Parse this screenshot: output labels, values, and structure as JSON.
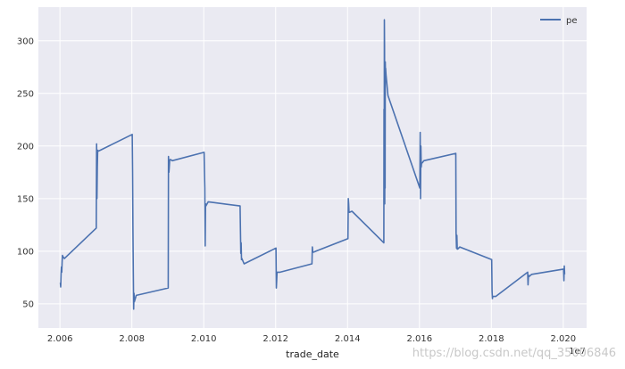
{
  "chart_data": {
    "type": "line",
    "title": "",
    "xlabel": "trade_date",
    "ylabel": "",
    "x_offset_label": "1e7",
    "xlim": [
      20054000,
      20206500
    ],
    "ylim": [
      27,
      332
    ],
    "x_ticks": [
      20060000,
      20080000,
      20100000,
      20120000,
      20140000,
      20160000,
      20180000,
      20200000
    ],
    "x_tick_labels": [
      "2.006",
      "2.008",
      "2.010",
      "2.012",
      "2.014",
      "2.016",
      "2.018",
      "2.020"
    ],
    "y_ticks": [
      50,
      100,
      150,
      200,
      250,
      300
    ],
    "y_tick_labels": [
      "50",
      "100",
      "150",
      "200",
      "250",
      "300"
    ],
    "grid": true,
    "legend_position": "top-right",
    "style": {
      "background": "#eaeaf2",
      "grid_color": "#ffffff",
      "line_color": "#4c72b0"
    },
    "series": [
      {
        "name": "pe",
        "x": [
          20060104,
          20060200,
          20060300,
          20060400,
          20060500,
          20060600,
          20060700,
          20060800,
          20061229,
          20070104,
          20070200,
          20070300,
          20070400,
          20070500,
          20070600,
          20071228,
          20080104,
          20080200,
          20080300,
          20080400,
          20080500,
          20080600,
          20080700,
          20081231,
          20090105,
          20090200,
          20090300,
          20090400,
          20090500,
          20090600,
          20090800,
          20091231,
          20100104,
          20100200,
          20100300,
          20100400,
          20100500,
          20100600,
          20101231,
          20110104,
          20110200,
          20110300,
          20110400,
          20110500,
          20110600,
          20111230,
          20120104,
          20120200,
          20120300,
          20120400,
          20120600,
          20121231,
          20130104,
          20130200,
          20130300,
          20130400,
          20130500,
          20131231,
          20140103,
          20140200,
          20140300,
          20140400,
          20140500,
          20141231,
          20150105,
          20150150,
          20150200,
          20150250,
          20150300,
          20150350,
          20150400,
          20150450,
          20150500,
          20150550,
          20150600,
          20150700,
          20151231,
          20160104,
          20160200,
          20160300,
          20160400,
          20160500,
          20160600,
          20160800,
          20161230,
          20170103,
          20170200,
          20170300,
          20170400,
          20170500,
          20170600,
          20171229,
          20180102,
          20180200,
          20180300,
          20180400,
          20180600,
          20181228,
          20190102,
          20190200,
          20190300,
          20190400,
          20190500,
          20191231,
          20200102,
          20200200,
          20200300,
          20200400
        ],
        "y": [
          70,
          66,
          78,
          85,
          80,
          90,
          96,
          95,
          93,
          122,
          202,
          150,
          180,
          196,
          195,
          196,
          211,
          175,
          120,
          80,
          45,
          60,
          52,
          58,
          65,
          190,
          175,
          180,
          186,
          187,
          187,
          186,
          194,
          175,
          160,
          105,
          145,
          143,
          147,
          143,
          120,
          98,
          108,
          92,
          93,
          88,
          103,
          65,
          72,
          80,
          80,
          80,
          88,
          104,
          100,
          99,
          99,
          100,
          112,
          150,
          145,
          137,
          137,
          138,
          108,
          235,
          150,
          320,
          295,
          145,
          205,
          160,
          280,
          270,
          274,
          268,
          248,
          160,
          213,
          150,
          200,
          180,
          184,
          184,
          186,
          193,
          118,
          103,
          115,
          102,
          102,
          104,
          92,
          62,
          55,
          57,
          57,
          57,
          80,
          68,
          75,
          77,
          76,
          78,
          83,
          72,
          86,
          78
        ]
      }
    ]
  },
  "watermark": "https://blog.csdn.net/qq_35006846"
}
